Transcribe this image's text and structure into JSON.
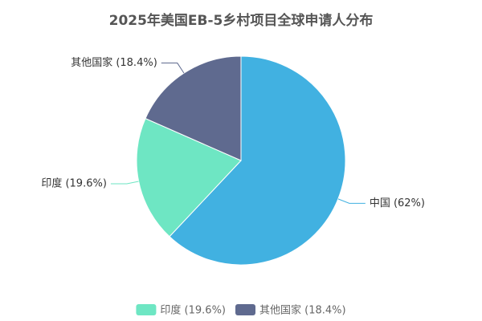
{
  "chart_data": {
    "type": "pie",
    "title": "2025年美国EB-5乡村项目全球申请人分布",
    "categories": [
      "中国",
      "印度",
      "其他国家"
    ],
    "values": [
      62,
      19.6,
      18.4
    ],
    "value_labels": [
      "中国 (62%)",
      "印度 (19.6%)",
      "其他国家 (18.4%)"
    ],
    "colors": [
      "#41b1e1",
      "#6ee6c3",
      "#5f6a8f"
    ],
    "legend_entries": [
      "印度 (19.6%)",
      "其他国家 (18.4%)"
    ]
  }
}
